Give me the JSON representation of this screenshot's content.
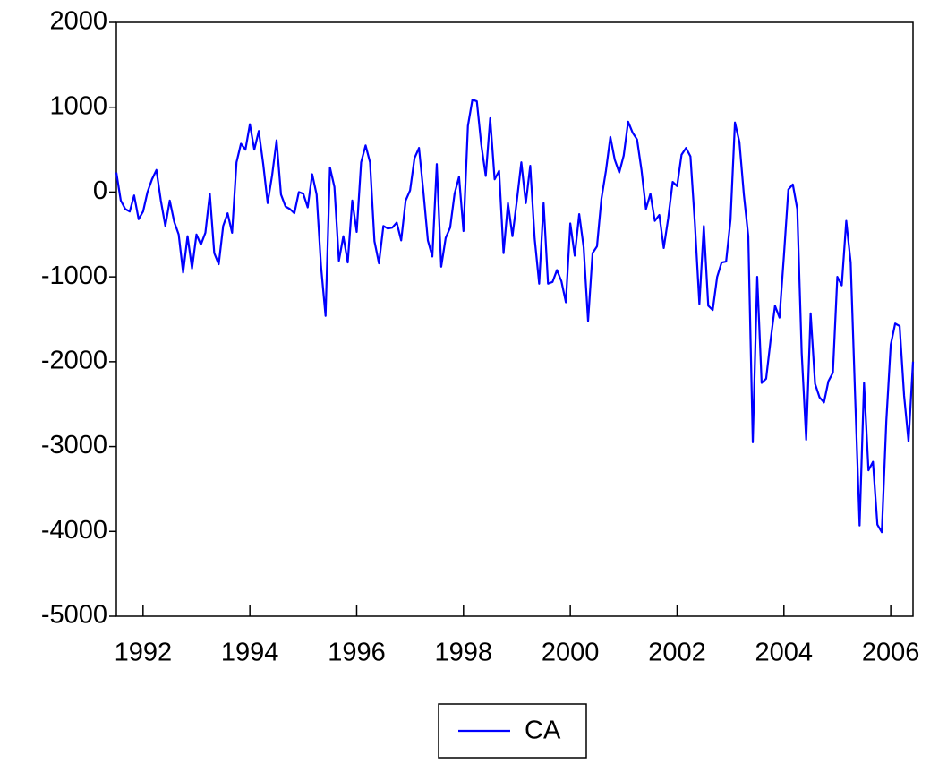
{
  "chart_data": {
    "type": "line",
    "x": [
      1991.5,
      1991.583,
      1991.667,
      1991.75,
      1991.833,
      1991.917,
      1992,
      1992.083,
      1992.167,
      1992.25,
      1992.333,
      1992.417,
      1992.5,
      1992.583,
      1992.667,
      1992.75,
      1992.833,
      1992.917,
      1993,
      1993.083,
      1993.167,
      1993.25,
      1993.333,
      1993.417,
      1993.5,
      1993.583,
      1993.667,
      1993.75,
      1993.833,
      1993.917,
      1994,
      1994.083,
      1994.167,
      1994.25,
      1994.333,
      1994.417,
      1994.5,
      1994.583,
      1994.667,
      1994.75,
      1994.833,
      1994.917,
      1995,
      1995.083,
      1995.167,
      1995.25,
      1995.333,
      1995.417,
      1995.5,
      1995.583,
      1995.667,
      1995.75,
      1995.833,
      1995.917,
      1996,
      1996.083,
      1996.167,
      1996.25,
      1996.333,
      1996.417,
      1996.5,
      1996.583,
      1996.667,
      1996.75,
      1996.833,
      1996.917,
      1997,
      1997.083,
      1997.167,
      1997.25,
      1997.333,
      1997.417,
      1997.5,
      1997.583,
      1997.667,
      1997.75,
      1997.833,
      1997.917,
      1998,
      1998.083,
      1998.167,
      1998.25,
      1998.333,
      1998.417,
      1998.5,
      1998.583,
      1998.667,
      1998.75,
      1998.833,
      1998.917,
      1999,
      1999.083,
      1999.167,
      1999.25,
      1999.333,
      1999.417,
      1999.5,
      1999.583,
      1999.667,
      1999.75,
      1999.833,
      1999.917,
      2000,
      2000.083,
      2000.167,
      2000.25,
      2000.333,
      2000.417,
      2000.5,
      2000.583,
      2000.667,
      2000.75,
      2000.833,
      2000.917,
      2001,
      2001.083,
      2001.167,
      2001.25,
      2001.333,
      2001.417,
      2001.5,
      2001.583,
      2001.667,
      2001.75,
      2001.833,
      2001.917,
      2002,
      2002.083,
      2002.167,
      2002.25,
      2002.333,
      2002.417,
      2002.5,
      2002.583,
      2002.667,
      2002.75,
      2002.833,
      2002.917,
      2003,
      2003.083,
      2003.167,
      2003.25,
      2003.333,
      2003.417,
      2003.5,
      2003.583,
      2003.667,
      2003.75,
      2003.833,
      2003.917,
      2004,
      2004.083,
      2004.167,
      2004.25,
      2004.333,
      2004.417,
      2004.5,
      2004.583,
      2004.667,
      2004.75,
      2004.833,
      2004.917,
      2005,
      2005.083,
      2005.167,
      2005.25,
      2005.333,
      2005.417,
      2005.5,
      2005.583,
      2005.667,
      2005.75,
      2005.833,
      2005.917,
      2006,
      2006.083,
      2006.167,
      2006.25,
      2006.333,
      2006.417
    ],
    "series": [
      {
        "name": "CA",
        "color": "#0000ff",
        "values": [
          230,
          -100,
          -200,
          -230,
          -40,
          -320,
          -230,
          0,
          150,
          260,
          -100,
          -400,
          -100,
          -350,
          -500,
          -950,
          -520,
          -900,
          -500,
          -620,
          -480,
          -20,
          -720,
          -850,
          -400,
          -250,
          -480,
          350,
          570,
          500,
          800,
          500,
          720,
          330,
          -130,
          200,
          610,
          -30,
          -170,
          -200,
          -250,
          0,
          -20,
          -180,
          210,
          -30,
          -880,
          -1460,
          290,
          60,
          -810,
          -520,
          -830,
          -100,
          -470,
          350,
          550,
          350,
          -580,
          -840,
          -400,
          -430,
          -420,
          -360,
          -570,
          -100,
          20,
          400,
          520,
          0,
          -570,
          -760,
          330,
          -880,
          -540,
          -420,
          -20,
          180,
          -460,
          780,
          1090,
          1070,
          560,
          190,
          870,
          150,
          250,
          -720,
          -130,
          -520,
          -100,
          350,
          -130,
          310,
          -550,
          -1080,
          -130,
          -1080,
          -1060,
          -920,
          -1050,
          -1300,
          -370,
          -750,
          -260,
          -650,
          -1520,
          -720,
          -640,
          -80,
          250,
          650,
          380,
          230,
          430,
          830,
          700,
          620,
          260,
          -200,
          -20,
          -340,
          -270,
          -660,
          -310,
          120,
          70,
          440,
          520,
          420,
          -370,
          -1320,
          -400,
          -1340,
          -1390,
          -1000,
          -830,
          -820,
          -330,
          820,
          590,
          -30,
          -520,
          -2950,
          -1000,
          -2250,
          -2200,
          -1750,
          -1340,
          -1480,
          -750,
          30,
          90,
          -200,
          -1900,
          -2920,
          -1430,
          -2260,
          -2420,
          -2480,
          -2230,
          -2130,
          -1000,
          -1100,
          -340,
          -830,
          -2400,
          -3930,
          -2250,
          -3280,
          -3180,
          -3920,
          -4010,
          -2700,
          -1800,
          -1550,
          -1580,
          -2400,
          -2940,
          -2000
        ]
      }
    ],
    "xlim": [
      1991.5,
      2006.417
    ],
    "xticks": [
      1992,
      1994,
      1996,
      1998,
      2000,
      2002,
      2004,
      2006
    ],
    "ylim": [
      -5000,
      2000
    ],
    "yticks": [
      -5000,
      -4000,
      -3000,
      -2000,
      -1000,
      0,
      1000,
      2000
    ],
    "legend": "bottom"
  }
}
